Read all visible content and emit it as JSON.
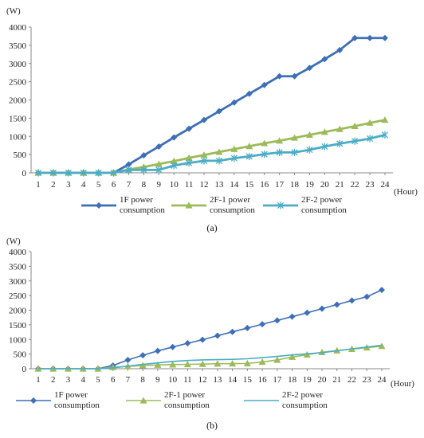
{
  "chart_data": [
    {
      "type": "line",
      "unit_label": "(W)",
      "x_unit_label": "(Hour)",
      "caption": "(a)",
      "x": [
        1,
        2,
        3,
        4,
        5,
        6,
        7,
        8,
        9,
        10,
        11,
        12,
        13,
        14,
        15,
        16,
        17,
        18,
        19,
        20,
        21,
        22,
        23,
        24
      ],
      "ylim": [
        0,
        4000
      ],
      "yticks": [
        0,
        500,
        1000,
        1500,
        2000,
        2500,
        3000,
        3500,
        4000
      ],
      "grid": false,
      "legend_position": "bottom",
      "series": [
        {
          "name": "1F power consumption",
          "legend_lines": [
            "1F power",
            "consumption"
          ],
          "color": "#3d6fb6",
          "marker": "diamond",
          "values": [
            0,
            0,
            0,
            0,
            0,
            0,
            230,
            480,
            720,
            970,
            1210,
            1450,
            1690,
            1930,
            2170,
            2410,
            2650,
            2650,
            2880,
            3120,
            3370,
            3700,
            3700,
            3700
          ]
        },
        {
          "name": "2F-1 power consumption",
          "legend_lines": [
            "2F-1 power",
            "consumption"
          ],
          "color": "#9bbb59",
          "marker": "triangle",
          "values": [
            0,
            0,
            0,
            0,
            0,
            0,
            90,
            160,
            240,
            320,
            410,
            490,
            570,
            650,
            730,
            810,
            880,
            960,
            1040,
            1120,
            1200,
            1280,
            1370,
            1450
          ]
        },
        {
          "name": "2F-2 power consumption",
          "legend_lines": [
            "2F-2 power",
            "consumption"
          ],
          "color": "#4bacc6",
          "marker": "star",
          "values": [
            0,
            0,
            0,
            0,
            0,
            0,
            80,
            80,
            80,
            200,
            270,
            330,
            330,
            400,
            450,
            510,
            560,
            560,
            630,
            720,
            800,
            870,
            940,
            1040
          ]
        }
      ]
    },
    {
      "type": "line",
      "unit_label": "(W)",
      "x_unit_label": "(Hour)",
      "caption": "(b)",
      "x": [
        1,
        2,
        3,
        4,
        5,
        6,
        7,
        8,
        9,
        10,
        11,
        12,
        13,
        14,
        15,
        16,
        17,
        18,
        19,
        20,
        21,
        22,
        23,
        24
      ],
      "ylim": [
        0,
        4000
      ],
      "yticks": [
        0,
        500,
        1000,
        1500,
        2000,
        2500,
        3000,
        3500,
        4000
      ],
      "grid": false,
      "legend_position": "bottom",
      "series": [
        {
          "name": "1F power consumption",
          "legend_lines": [
            "1F power",
            "consumption"
          ],
          "color": "#3d6fb6",
          "marker": "diamond",
          "values": [
            0,
            0,
            0,
            0,
            0,
            110,
            300,
            460,
            610,
            740,
            870,
            990,
            1130,
            1260,
            1390,
            1520,
            1650,
            1780,
            1910,
            2050,
            2190,
            2330,
            2460,
            2690
          ]
        },
        {
          "name": "2F-1 power consumption",
          "legend_lines": [
            "2F-1 power",
            "consumption"
          ],
          "color": "#9bbb59",
          "marker": "triangle",
          "values": [
            0,
            0,
            0,
            0,
            0,
            50,
            80,
            110,
            130,
            140,
            150,
            160,
            170,
            175,
            180,
            230,
            300,
            400,
            480,
            560,
            620,
            670,
            720,
            770
          ]
        },
        {
          "name": "2F-2 power consumption",
          "legend_lines": [
            "2F-2 power",
            "consumption"
          ],
          "color": "#4bacc6",
          "marker": "none",
          "values": [
            0,
            0,
            0,
            0,
            0,
            30,
            90,
            150,
            200,
            250,
            280,
            300,
            310,
            320,
            340,
            380,
            420,
            470,
            510,
            550,
            610,
            680,
            740,
            800
          ]
        }
      ]
    }
  ]
}
